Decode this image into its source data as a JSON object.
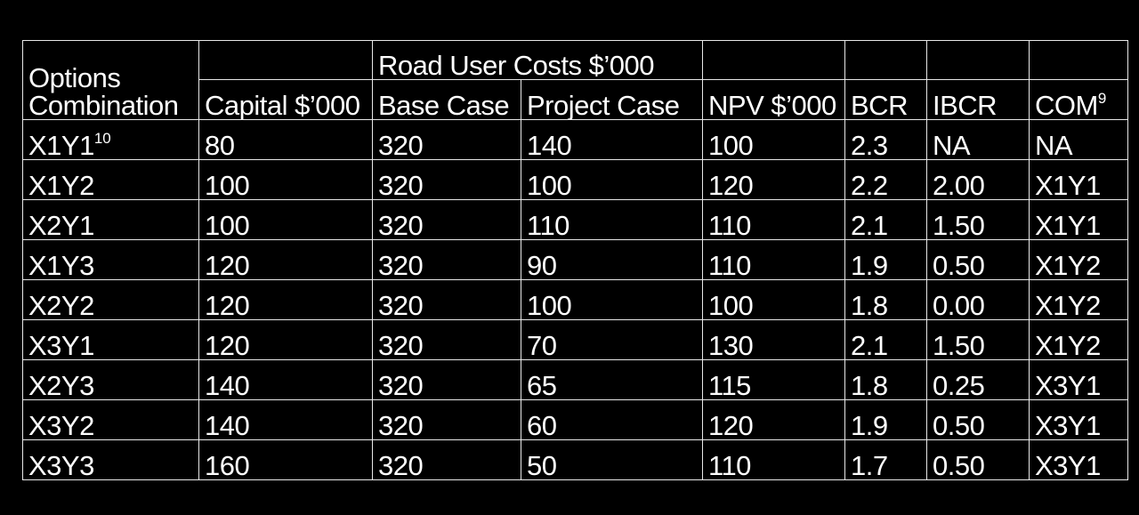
{
  "table": {
    "header_group": "Road User Costs $’000",
    "headers": {
      "options_line1": "Options",
      "options_line2": "Combination",
      "capital": "Capital $’000",
      "base_case": "Base Case",
      "project_case": "Project Case",
      "npv": "NPV $’000",
      "bcr": "BCR",
      "ibcr": "IBCR",
      "com": "COM",
      "com_sup": "9"
    },
    "rows": [
      {
        "option": "X1Y1",
        "option_sup": "10",
        "capital": "80",
        "base_case": "320",
        "project_case": "140",
        "npv": "100",
        "bcr": "2.3",
        "ibcr": "NA",
        "com": "NA"
      },
      {
        "option": "X1Y2",
        "option_sup": "",
        "capital": "100",
        "base_case": "320",
        "project_case": "100",
        "npv": "120",
        "bcr": "2.2",
        "ibcr": "2.00",
        "com": "X1Y1"
      },
      {
        "option": "X2Y1",
        "option_sup": "",
        "capital": "100",
        "base_case": "320",
        "project_case": "110",
        "npv": "110",
        "bcr": "2.1",
        "ibcr": "1.50",
        "com": "X1Y1"
      },
      {
        "option": "X1Y3",
        "option_sup": "",
        "capital": "120",
        "base_case": "320",
        "project_case": "90",
        "npv": "110",
        "bcr": "1.9",
        "ibcr": "0.50",
        "com": "X1Y2"
      },
      {
        "option": "X2Y2",
        "option_sup": "",
        "capital": "120",
        "base_case": "320",
        "project_case": "100",
        "npv": "100",
        "bcr": "1.8",
        "ibcr": "0.00",
        "com": "X1Y2"
      },
      {
        "option": "X3Y1",
        "option_sup": "",
        "capital": "120",
        "base_case": "320",
        "project_case": "70",
        "npv": "130",
        "bcr": "2.1",
        "ibcr": "1.50",
        "com": "X1Y2"
      },
      {
        "option": "X2Y3",
        "option_sup": "",
        "capital": "140",
        "base_case": "320",
        "project_case": "65",
        "npv": "115",
        "bcr": "1.8",
        "ibcr": "0.25",
        "com": "X3Y1"
      },
      {
        "option": "X3Y2",
        "option_sup": "",
        "capital": "140",
        "base_case": "320",
        "project_case": "60",
        "npv": "120",
        "bcr": "1.9",
        "ibcr": "0.50",
        "com": "X3Y1"
      },
      {
        "option": "X3Y3",
        "option_sup": "",
        "capital": "160",
        "base_case": "320",
        "project_case": "50",
        "npv": "110",
        "bcr": "1.7",
        "ibcr": "0.50",
        "com": "X3Y1"
      }
    ]
  },
  "colors": {
    "background": "#000000",
    "text": "#ffffff",
    "grid": "#e8e8e8"
  }
}
